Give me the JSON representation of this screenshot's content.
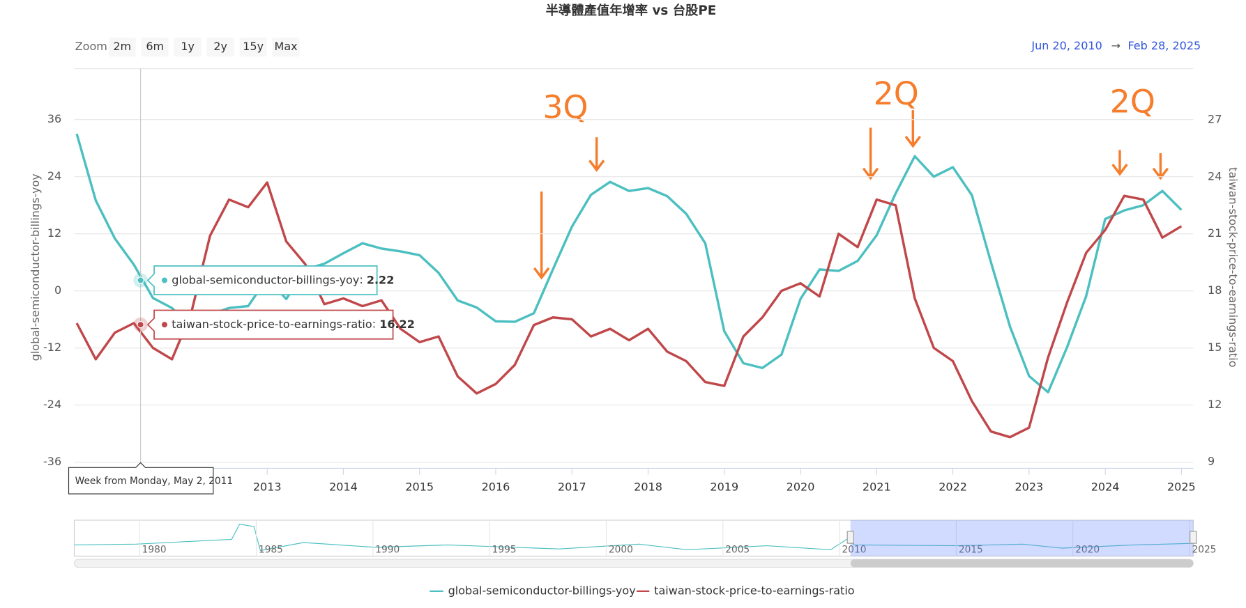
{
  "chart_data": {
    "type": "line",
    "title": "半導體產值年增率 vs 台股PE",
    "zoom": {
      "label": "Zoom",
      "buttons": [
        "2m",
        "6m",
        "1y",
        "2y",
        "15y",
        "Max"
      ]
    },
    "range": {
      "from": "Jun 20, 2010",
      "arrow": "→",
      "to": "Feb 28, 2025"
    },
    "x": [
      "2010-07",
      "2010-10",
      "2011-01",
      "2011-04",
      "2011-07",
      "2011-10",
      "2012-01",
      "2012-04",
      "2012-07",
      "2012-10",
      "2013-01",
      "2013-04",
      "2013-07",
      "2013-10",
      "2014-01",
      "2014-04",
      "2014-07",
      "2014-10",
      "2015-01",
      "2015-04",
      "2015-07",
      "2015-10",
      "2016-01",
      "2016-04",
      "2016-07",
      "2016-10",
      "2017-01",
      "2017-04",
      "2017-07",
      "2017-10",
      "2018-01",
      "2018-04",
      "2018-07",
      "2018-10",
      "2019-01",
      "2019-04",
      "2019-07",
      "2019-10",
      "2020-01",
      "2020-04",
      "2020-07",
      "2020-10",
      "2021-01",
      "2021-04",
      "2021-07",
      "2021-10",
      "2022-01",
      "2022-04",
      "2022-07",
      "2022-10",
      "2023-01",
      "2023-04",
      "2023-07",
      "2023-10",
      "2024-01",
      "2024-04",
      "2024-07",
      "2024-10",
      "2025-01"
    ],
    "xlim": [
      "2010-06-20",
      "2025-02-28"
    ],
    "xticks": [
      2013,
      2014,
      2015,
      2016,
      2017,
      2018,
      2019,
      2020,
      2021,
      2022,
      2023,
      2024,
      2025
    ],
    "ylim": [
      -37.3,
      46.7
    ],
    "yticks": [
      -36,
      -24,
      -12,
      0,
      12,
      24,
      36
    ],
    "y2lim": [
      8.66,
      29.69
    ],
    "y2ticks": [
      9,
      12,
      15,
      18,
      21,
      24,
      27
    ],
    "ylabel": "global-semiconductor-billings-yoy",
    "y2label": "taiwan-stock-price-to-earnings-ratio",
    "grid": true,
    "legend": "bottom",
    "series": [
      {
        "name": "global-semiconductor-billings-yoy",
        "color": "#4cbfc0",
        "values": [
          33,
          19,
          11,
          5.5,
          -1.5,
          -3.6,
          -7.5,
          -5,
          -3.6,
          -3.2,
          2.6,
          -1.7,
          4.5,
          5.7,
          7.9,
          10,
          8.9,
          8.3,
          7.5,
          3.8,
          -2,
          -3.5,
          -6.4,
          -6.5,
          -4.7,
          4.5,
          13.5,
          20.2,
          22.9,
          21,
          21.6,
          19.9,
          16.2,
          10,
          -8.5,
          -15.2,
          -16.2,
          -13.4,
          -1.7,
          4.5,
          4.2,
          6.3,
          11.7,
          20.5,
          28.3,
          24,
          26,
          20.1,
          6,
          -7.5,
          -17.9,
          -21.3,
          -11.8,
          -1.1,
          15.1,
          16.9,
          18,
          21,
          17
        ]
      },
      {
        "name": "taiwan-stock-price-to-earnings-ratio",
        "color": "#c0474a",
        "axis": "y2",
        "values": [
          16.3,
          14.4,
          15.8,
          16.3,
          15,
          14.4,
          16.8,
          20.9,
          22.8,
          22.4,
          23.7,
          20.6,
          19.4,
          17.3,
          17.6,
          17.2,
          17.5,
          16,
          15.3,
          15.6,
          13.5,
          12.6,
          13.1,
          14.1,
          16.2,
          16.6,
          16.5,
          15.6,
          16,
          15.4,
          16,
          14.8,
          14.3,
          13.2,
          13,
          15.6,
          16.6,
          18,
          18.4,
          17.7,
          21,
          20.3,
          22.8,
          22.5,
          17.6,
          15,
          14.3,
          12.2,
          10.6,
          10.3,
          10.8,
          14.5,
          17.4,
          20,
          21.2,
          23,
          22.8,
          20.8,
          21.4
        ]
      }
    ],
    "annotations": [
      {
        "text": "3Q"
      },
      {
        "text": "2Q"
      },
      {
        "text": "2Q"
      }
    ],
    "tooltip": {
      "header": "Week from Monday, May 2, 2011",
      "items": [
        {
          "value": 2.22
        },
        {
          "value": 16.22
        }
      ]
    },
    "navigator": {
      "xlim": [
        1977.2,
        2025.16
      ],
      "xticks": [
        1980,
        1985,
        1990,
        1995,
        2000,
        2005,
        2010,
        2015,
        2020,
        2025
      ]
    }
  }
}
